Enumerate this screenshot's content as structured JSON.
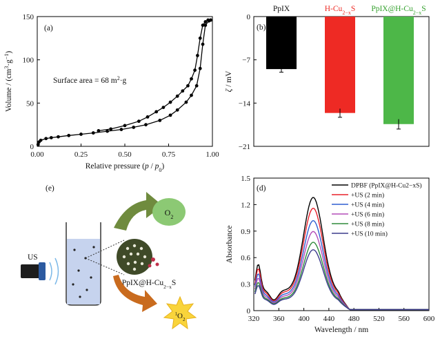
{
  "chart_data": [
    {
      "panel_label": "(a)",
      "type": "line",
      "xlabel": "Relative pressure (p / p0)",
      "ylabel": "Volume / (cm³·g⁻¹)",
      "annotation": "Surface area = 68 m²·g",
      "xlim": [
        0,
        1.0
      ],
      "ylim": [
        0,
        150
      ],
      "xticks": [
        "0.00",
        "0.25",
        "0.50",
        "0.75",
        "1.00"
      ],
      "yticks": [
        "0",
        "50",
        "100",
        "150"
      ],
      "series": [
        {
          "values": [
            [
              0.005,
              2
            ],
            [
              0.01,
              5
            ],
            [
              0.02,
              7
            ],
            [
              0.05,
              9
            ],
            [
              0.08,
              10
            ],
            [
              0.12,
              11
            ],
            [
              0.18,
              12.5
            ],
            [
              0.25,
              14
            ],
            [
              0.32,
              15.5
            ],
            [
              0.4,
              17.5
            ],
            [
              0.48,
              19.5
            ],
            [
              0.55,
              22
            ],
            [
              0.62,
              25
            ],
            [
              0.7,
              30
            ],
            [
              0.76,
              36
            ],
            [
              0.8,
              42
            ],
            [
              0.85,
              51
            ],
            [
              0.88,
              59
            ],
            [
              0.91,
              70
            ],
            [
              0.93,
              90
            ],
            [
              0.945,
              118
            ],
            [
              0.96,
              140
            ],
            [
              0.98,
              145
            ],
            [
              0.99,
              146
            ]
          ]
        },
        {
          "values": [
            [
              0.99,
              146
            ],
            [
              0.975,
              146
            ],
            [
              0.96,
              144
            ],
            [
              0.945,
              140
            ],
            [
              0.93,
              125
            ],
            [
              0.915,
              105
            ],
            [
              0.9,
              88
            ],
            [
              0.88,
              78
            ],
            [
              0.86,
              70
            ],
            [
              0.83,
              64
            ],
            [
              0.8,
              58
            ],
            [
              0.76,
              51
            ],
            [
              0.72,
              45
            ],
            [
              0.68,
              40
            ],
            [
              0.63,
              34
            ],
            [
              0.58,
              29
            ],
            [
              0.5,
              24
            ],
            [
              0.42,
              20
            ],
            [
              0.35,
              18
            ]
          ]
        }
      ]
    },
    {
      "panel_label": "(b)",
      "type": "bar",
      "ylabel": "ζ / mV",
      "ylim": [
        -21,
        0
      ],
      "yticks": [
        "0",
        "−7",
        "−14",
        "−21"
      ],
      "categories": [
        "PpIX",
        "H-Cu2−xS",
        "PpIX@H-Cu2−xS"
      ],
      "values": [
        -8.5,
        -15.6,
        -17.4
      ],
      "errors": [
        0.5,
        0.7,
        0.8
      ],
      "colors": [
        "#000000",
        "#ee2a24",
        "#4db748"
      ]
    },
    {
      "panel_label": "(d)",
      "type": "line",
      "xlabel": "Wavelength / nm",
      "ylabel": "Absorbance",
      "xlim": [
        320,
        600
      ],
      "ylim": [
        0,
        1.5
      ],
      "xticks": [
        "320",
        "360",
        "400",
        "440",
        "480",
        "520",
        "560",
        "600"
      ],
      "yticks": [
        "0",
        "0.3",
        "0.6",
        "0.9",
        "1.2",
        "1.5"
      ],
      "peak_wavelength": 415,
      "series": [
        {
          "name": "DPBF (PpIX@H-Cu2−xS)",
          "peak": 1.35,
          "color": "#000000"
        },
        {
          "name": "+US (2 min)",
          "peak": 1.22,
          "color": "#e8202a"
        },
        {
          "name": "+US (4 min)",
          "peak": 1.07,
          "color": "#2f5fd0"
        },
        {
          "name": "+US (6 min)",
          "peak": 0.94,
          "color": "#b34bb8"
        },
        {
          "name": "+US (8 min)",
          "peak": 0.81,
          "color": "#2f8a3a"
        },
        {
          "name": "+US (10 min)",
          "peak": 0.72,
          "color": "#3a3a8c"
        }
      ]
    }
  ],
  "schematic": {
    "panel_label": "(e)",
    "us_label": "US",
    "o2_label": "O2",
    "singlet_label": "1O2",
    "material_label": "PpIX@H-Cu2−xS"
  }
}
